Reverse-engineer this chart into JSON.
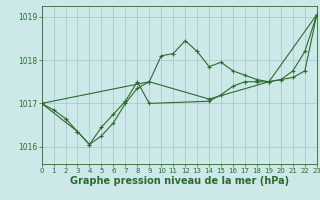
{
  "bg_color": "#cce8e8",
  "grid_color": "#aacccc",
  "line_color": "#2d6b2d",
  "xlabel": "Graphe pression niveau de la mer (hPa)",
  "xlim": [
    0,
    23
  ],
  "ylim": [
    1015.6,
    1019.25
  ],
  "yticks": [
    1016,
    1017,
    1018,
    1019
  ],
  "xticks": [
    0,
    1,
    2,
    3,
    4,
    5,
    6,
    7,
    8,
    9,
    10,
    11,
    12,
    13,
    14,
    15,
    16,
    17,
    18,
    19,
    20,
    21,
    22,
    23
  ],
  "series1_x": [
    0,
    1,
    2,
    3,
    4,
    5,
    6,
    7,
    8,
    9,
    10,
    11,
    12,
    13,
    14,
    15,
    16,
    17,
    18,
    19,
    20,
    21,
    22,
    23
  ],
  "series1_y": [
    1017.0,
    1016.85,
    1016.65,
    1016.35,
    1016.05,
    1016.25,
    1016.55,
    1017.0,
    1017.35,
    1017.5,
    1018.1,
    1018.15,
    1018.45,
    1018.2,
    1017.85,
    1017.95,
    1017.75,
    1017.65,
    1017.55,
    1017.5,
    1017.55,
    1017.75,
    1018.2,
    1019.05
  ],
  "series2_x": [
    0,
    3,
    4,
    5,
    6,
    7,
    8,
    9,
    14,
    15,
    16,
    17,
    18,
    19,
    20,
    21,
    22,
    23
  ],
  "series2_y": [
    1017.0,
    1016.35,
    1016.05,
    1016.45,
    1016.75,
    1017.05,
    1017.5,
    1017.0,
    1017.05,
    1017.2,
    1017.4,
    1017.5,
    1017.5,
    1017.5,
    1017.55,
    1017.6,
    1017.75,
    1019.05
  ],
  "series3_x": [
    0,
    9,
    14,
    19,
    23
  ],
  "series3_y": [
    1017.0,
    1017.5,
    1017.1,
    1017.5,
    1019.05
  ],
  "xlabel_fontsize": 7,
  "tick_fontsize": 5.5,
  "lw": 0.8,
  "ms": 3.0
}
